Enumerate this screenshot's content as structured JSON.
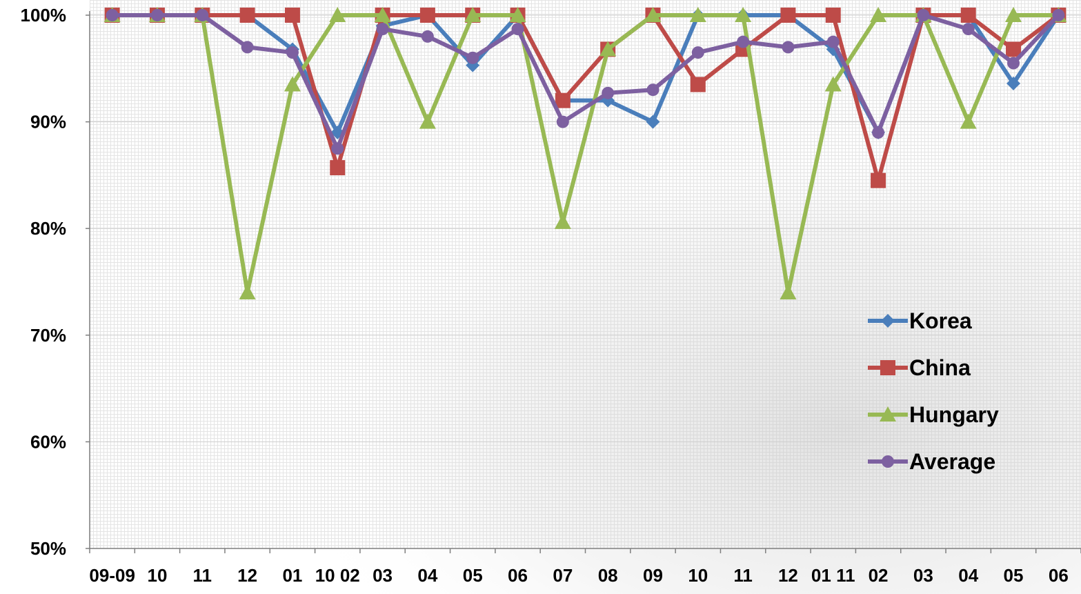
{
  "chart_data": {
    "type": "line",
    "title": "",
    "xlabel": "",
    "ylabel": "",
    "ylim": [
      0.5,
      1.0
    ],
    "y_ticks": [
      "50%",
      "60%",
      "70%",
      "80%",
      "90%",
      "100%"
    ],
    "x_tick_labels": [
      "09-09",
      "10",
      "11",
      "12",
      "01",
      "10 02",
      "03",
      "04",
      "05",
      "06",
      "07",
      "08",
      "09",
      "10",
      "11",
      "12",
      "01 11",
      "02",
      "03",
      "04",
      "05",
      "06"
    ],
    "categories": [
      "09-09",
      "10",
      "11",
      "12",
      "01",
      "02",
      "03",
      "04",
      "05",
      "06",
      "07",
      "08",
      "09",
      "10",
      "11",
      "12",
      "01",
      "02",
      "03",
      "04",
      "05",
      "06"
    ],
    "grid": true,
    "legend_position": "bottom-right",
    "series": [
      {
        "name": "Korea",
        "color": "#4a7ebb",
        "marker": "diamond",
        "values": [
          1.0,
          1.0,
          1.0,
          1.0,
          0.968,
          0.89,
          0.99,
          1.0,
          0.953,
          1.0,
          0.92,
          0.92,
          0.9,
          1.0,
          1.0,
          1.0,
          0.968,
          0.89,
          1.0,
          1.0,
          0.936,
          1.0
        ]
      },
      {
        "name": "China",
        "color": "#be4b48",
        "marker": "square",
        "values": [
          1.0,
          1.0,
          1.0,
          1.0,
          1.0,
          0.857,
          1.0,
          1.0,
          1.0,
          1.0,
          0.92,
          0.968,
          1.0,
          0.935,
          0.968,
          1.0,
          1.0,
          0.845,
          1.0,
          1.0,
          0.968,
          1.0
        ]
      },
      {
        "name": "Hungary",
        "color": "#98b954",
        "marker": "triangle",
        "values": [
          1.0,
          1.0,
          1.0,
          0.74,
          0.935,
          1.0,
          1.0,
          0.9,
          1.0,
          1.0,
          0.806,
          0.968,
          1.0,
          1.0,
          1.0,
          0.74,
          0.935,
          1.0,
          1.0,
          0.9,
          1.0,
          1.0
        ]
      },
      {
        "name": "Average",
        "color": "#7d60a0",
        "marker": "circle",
        "values": [
          1.0,
          1.0,
          1.0,
          0.97,
          0.965,
          0.875,
          0.987,
          0.98,
          0.96,
          0.987,
          0.9,
          0.927,
          0.93,
          0.965,
          0.975,
          0.97,
          0.975,
          0.89,
          1.0,
          0.987,
          0.955,
          1.0
        ]
      }
    ]
  }
}
